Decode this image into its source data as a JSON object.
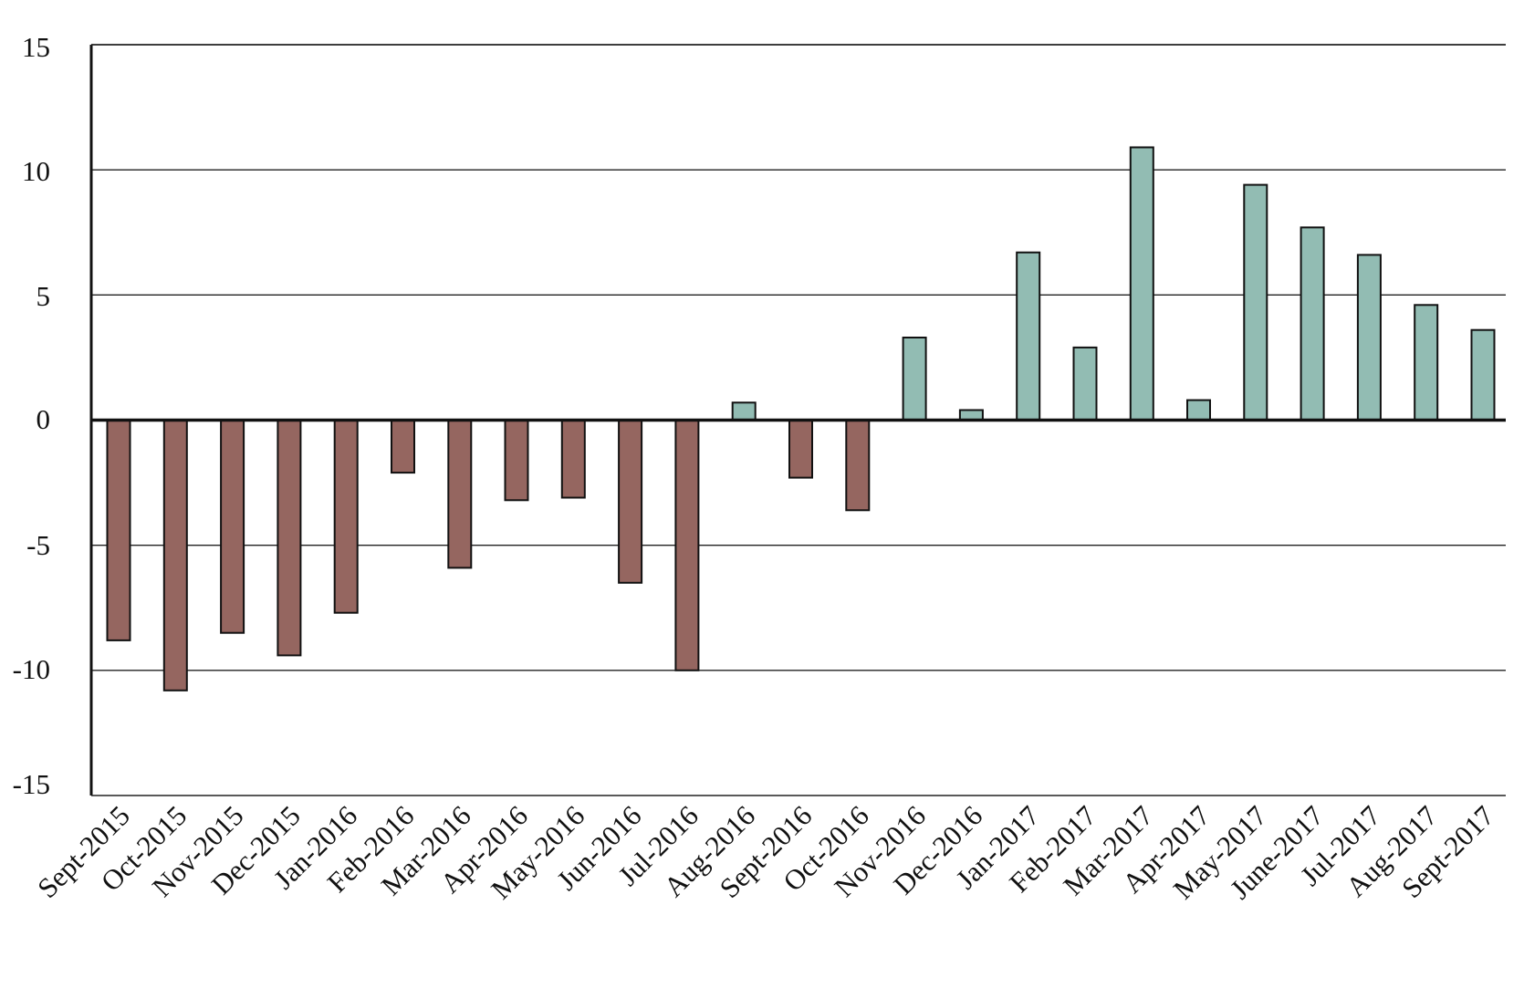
{
  "chart_data": {
    "type": "bar",
    "title": "",
    "xlabel": "",
    "ylabel": "",
    "ylim": [
      -15,
      15
    ],
    "yticks": [
      15,
      10,
      5,
      0,
      -5,
      -10,
      -15
    ],
    "grid": true,
    "colors": {
      "negative": "#956660",
      "positive": "#92bcb3",
      "outline": "#111111",
      "gridline": "#222222"
    },
    "categories": [
      "Sept-2015",
      "Oct-2015",
      "Nov-2015",
      "Dec-2015",
      "Jan-2016",
      "Feb-2016",
      "Mar-2016",
      "Apr-2016",
      "May-2016",
      "Jun-2016",
      "Jul-2016",
      "Aug-2016",
      "Sept-2016",
      "Oct-2016",
      "Nov-2016",
      "Dec-2016",
      "Jan-2017",
      "Feb-2017",
      "Mar-2017",
      "Apr-2017",
      "May-2017",
      "June-2017",
      "Jul-2017",
      "Aug-2017",
      "Sept-2017"
    ],
    "values": [
      -8.8,
      -10.8,
      -8.5,
      -9.4,
      -7.7,
      -2.1,
      -5.9,
      -3.2,
      -3.1,
      -6.5,
      -10.0,
      0.7,
      -2.3,
      -3.6,
      3.3,
      0.4,
      6.7,
      2.9,
      10.9,
      0.8,
      9.4,
      7.7,
      6.6,
      4.6,
      3.6
    ]
  }
}
